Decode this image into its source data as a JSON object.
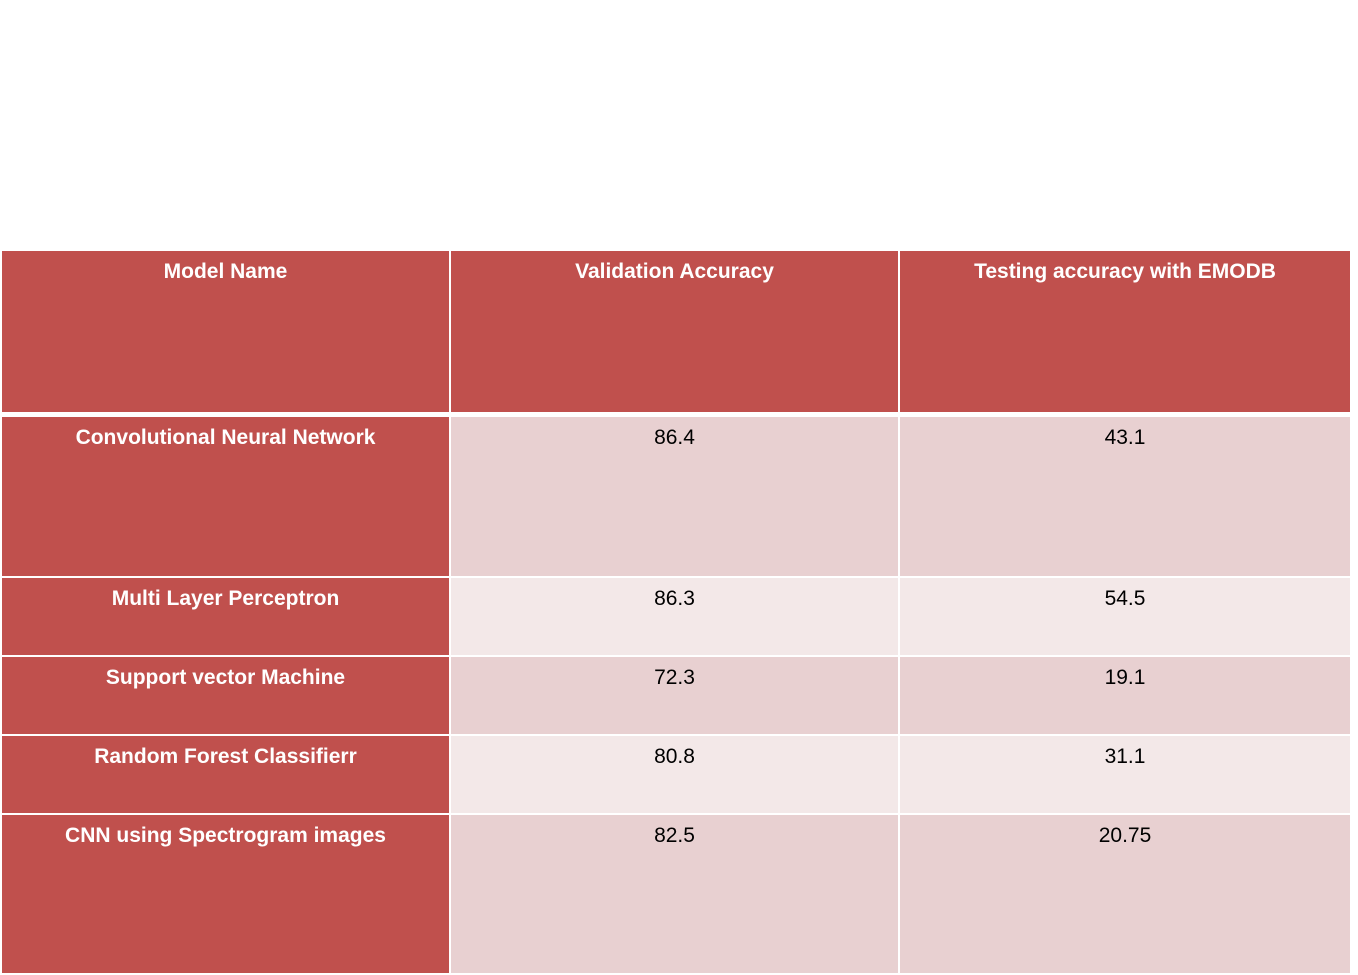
{
  "chart_data": {
    "type": "table",
    "columns": [
      "Model Name",
      "Validation Accuracy",
      "Testing accuracy with EMODB"
    ],
    "rows": [
      {
        "model": "Convolutional Neural Network",
        "validation_accuracy": "86.4",
        "testing_accuracy": "43.1"
      },
      {
        "model": "Multi Layer Perceptron",
        "validation_accuracy": "86.3",
        "testing_accuracy": "54.5"
      },
      {
        "model": "Support vector Machine",
        "validation_accuracy": "72.3",
        "testing_accuracy": "19.1"
      },
      {
        "model": "Random Forest Classifierr",
        "validation_accuracy": "80.8",
        "testing_accuracy": "31.1"
      },
      {
        "model": "CNN using Spectrogram images",
        "validation_accuracy": "82.5",
        "testing_accuracy": "20.75"
      }
    ]
  },
  "colors": {
    "header_bg": "#c0504d",
    "header_text": "#ffffff",
    "row_odd_bg": "#e8d0d1",
    "row_even_bg": "#f3e8e8",
    "cell_text": "#000000"
  }
}
